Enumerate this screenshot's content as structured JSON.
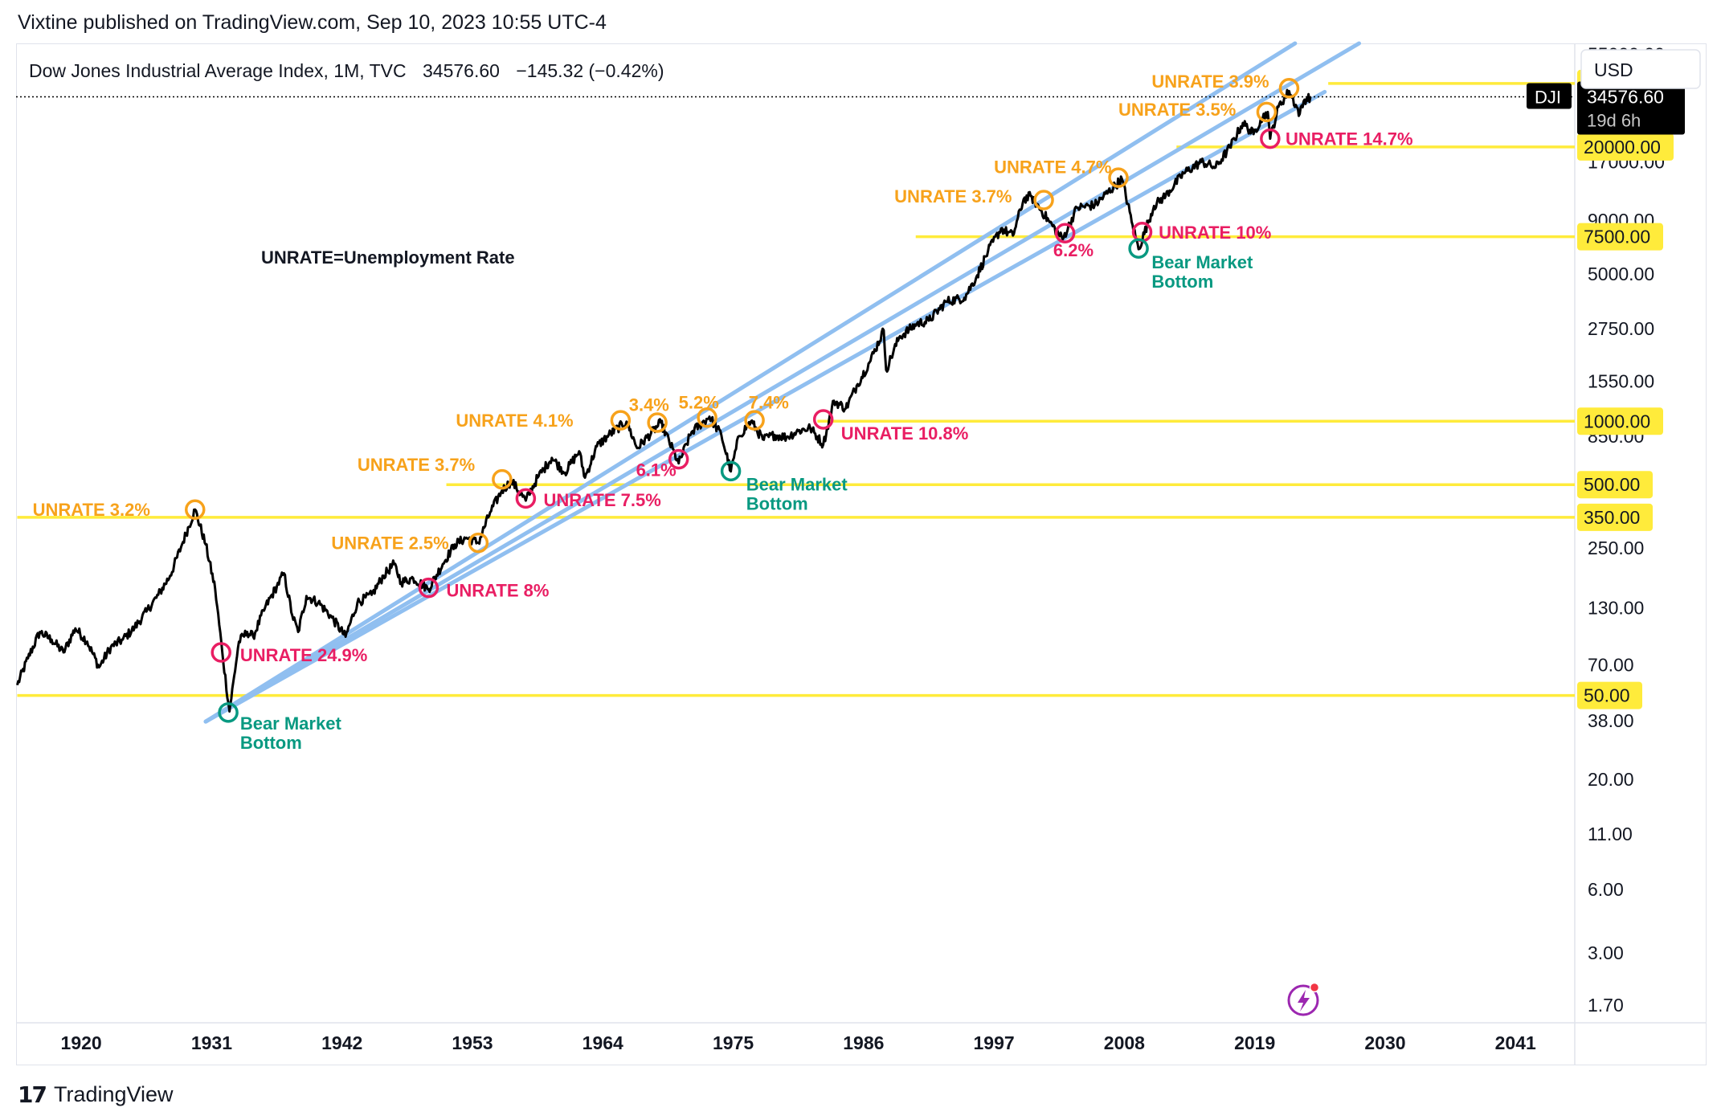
{
  "publisher_line": "Vixtine published on TradingView.com, Sep 10, 2023 10:55 UTC-4",
  "footer": {
    "logo_icon": "tradingview-logo-icon",
    "label": "TradingView"
  },
  "chart_data": {
    "type": "line",
    "title": "Dow Jones Industrial Average Index, 1M, TVC",
    "last_price": "34576.60",
    "change": "−145.32 (−0.42%)",
    "currency": "USD",
    "symbol": "DJI",
    "countdown": "19d 6h",
    "annotation_note": "UNRATE=Unemployment Rate",
    "log_scale": true,
    "ylim": [
      1.4,
      62000
    ],
    "xlim": [
      1914.5,
      2046
    ],
    "x_ticks": [
      "1920",
      "1931",
      "1942",
      "1953",
      "1964",
      "1975",
      "1986",
      "1997",
      "2008",
      "2019",
      "2030",
      "2041"
    ],
    "y_ticks": [
      "55000.00",
      "17000.00",
      "9000.00",
      "5000.00",
      "2750.00",
      "1550.00",
      "850.00",
      "250.00",
      "130.00",
      "70.00",
      "38.00",
      "20.00",
      "11.00",
      "6.00",
      "3.00",
      "1.70"
    ],
    "series_color": "#000000",
    "price_path": [
      [
        1914.6,
        56
      ],
      [
        1915.5,
        75
      ],
      [
        1916.5,
        100
      ],
      [
        1917.5,
        92
      ],
      [
        1918.5,
        80
      ],
      [
        1919.5,
        104
      ],
      [
        1920.5,
        90
      ],
      [
        1921.5,
        68
      ],
      [
        1922.5,
        85
      ],
      [
        1923.5,
        92
      ],
      [
        1924.5,
        105
      ],
      [
        1925.5,
        125
      ],
      [
        1926.5,
        150
      ],
      [
        1927.5,
        185
      ],
      [
        1928.5,
        260
      ],
      [
        1929.6,
        381
      ],
      [
        1930.5,
        260
      ],
      [
        1931.3,
        160
      ],
      [
        1931.9,
        80
      ],
      [
        1932.5,
        42
      ],
      [
        1933.3,
        90
      ],
      [
        1934.0,
        100
      ],
      [
        1934.5,
        95
      ],
      [
        1935.5,
        130
      ],
      [
        1936.5,
        165
      ],
      [
        1937.1,
        190
      ],
      [
        1937.8,
        120
      ],
      [
        1938.3,
        100
      ],
      [
        1939.0,
        148
      ],
      [
        1940.0,
        138
      ],
      [
        1941.0,
        120
      ],
      [
        1942.3,
        95
      ],
      [
        1943.3,
        138
      ],
      [
        1944.5,
        150
      ],
      [
        1945.5,
        185
      ],
      [
        1946.4,
        210
      ],
      [
        1947.0,
        172
      ],
      [
        1948.0,
        180
      ],
      [
        1949.3,
        160
      ],
      [
        1950.5,
        210
      ],
      [
        1951.5,
        260
      ],
      [
        1952.5,
        280
      ],
      [
        1953.5,
        265
      ],
      [
        1954.5,
        370
      ],
      [
        1955.5,
        470
      ],
      [
        1956.3,
        520
      ],
      [
        1957.5,
        420
      ],
      [
        1958.5,
        540
      ],
      [
        1959.7,
        670
      ],
      [
        1960.8,
        570
      ],
      [
        1962.0,
        720
      ],
      [
        1962.5,
        540
      ],
      [
        1963.5,
        760
      ],
      [
        1964.5,
        860
      ],
      [
        1966.0,
        995
      ],
      [
        1966.9,
        745
      ],
      [
        1968.9,
        985
      ],
      [
        1970.4,
        631
      ],
      [
        1971.5,
        890
      ],
      [
        1973.0,
        1051
      ],
      [
        1974.0,
        860
      ],
      [
        1974.8,
        578
      ],
      [
        1975.5,
        850
      ],
      [
        1976.5,
        1000
      ],
      [
        1977.5,
        820
      ],
      [
        1978.5,
        860
      ],
      [
        1979.5,
        840
      ],
      [
        1980.5,
        900
      ],
      [
        1981.5,
        930
      ],
      [
        1982.6,
        776
      ],
      [
        1983.5,
        1250
      ],
      [
        1984.5,
        1150
      ],
      [
        1985.5,
        1500
      ],
      [
        1986.5,
        1900
      ],
      [
        1987.7,
        2700
      ],
      [
        1987.9,
        1750
      ],
      [
        1989.0,
        2500
      ],
      [
        1990.5,
        2900
      ],
      [
        1991.5,
        3000
      ],
      [
        1993.0,
        3700
      ],
      [
        1994.5,
        3850
      ],
      [
        1995.5,
        4800
      ],
      [
        1996.5,
        6400
      ],
      [
        1997.6,
        8200
      ],
      [
        1998.6,
        7600
      ],
      [
        1999.5,
        11300
      ],
      [
        2000.1,
        11700
      ],
      [
        2001.7,
        8800
      ],
      [
        2002.8,
        7300
      ],
      [
        2004.0,
        10300
      ],
      [
        2005.5,
        10600
      ],
      [
        2007.8,
        14100
      ],
      [
        2008.7,
        8500
      ],
      [
        2009.2,
        6550
      ],
      [
        2010.5,
        10500
      ],
      [
        2011.5,
        11800
      ],
      [
        2013.0,
        15000
      ],
      [
        2014.5,
        17000
      ],
      [
        2015.7,
        16000
      ],
      [
        2016.9,
        19900
      ],
      [
        2018.0,
        26000
      ],
      [
        2018.9,
        23000
      ],
      [
        2019.5,
        27000
      ],
      [
        2020.1,
        29300
      ],
      [
        2020.3,
        21900
      ],
      [
        2021.0,
        31000
      ],
      [
        2021.9,
        36800
      ],
      [
        2022.8,
        28700
      ],
      [
        2023.2,
        33500
      ],
      [
        2023.7,
        34576
      ]
    ],
    "support_lines": [
      {
        "label": "40000.00",
        "value": 40000,
        "x_start": 2025.2
      },
      {
        "label": "20000.00",
        "value": 20000,
        "x_start": 2012.4
      },
      {
        "label": "7500.00",
        "value": 7500,
        "x_start": 1990.4
      },
      {
        "label": "1000.00",
        "value": 1000,
        "x_start": 1982.1
      },
      {
        "label": "500.00",
        "value": 500,
        "x_start": 1950.8
      },
      {
        "label": "350.00",
        "value": 350,
        "x_start": 1914.6
      },
      {
        "label": "50.00",
        "value": 50,
        "x_start": 1914.6
      }
    ],
    "support_color": "#ffeb3b",
    "trendline_color": "#90bff0",
    "trendlines": [
      {
        "from": [
          1930.5,
          37.6
        ],
        "to": [
          2022.4,
          62000
        ]
      },
      {
        "from": [
          1930.5,
          37.6
        ],
        "to": [
          2027.8,
          62000
        ]
      },
      {
        "from": [
          1930.5,
          37.6
        ],
        "to": [
          2024.9,
          36500
        ]
      }
    ],
    "peak_markers": [
      {
        "x": 1929.6,
        "y": 381,
        "label": "UNRATE 3.2%",
        "label_x": 1915.9,
        "label_y": 381
      },
      {
        "x": 1953.5,
        "y": 265,
        "label": "UNRATE 2.5%",
        "label_x": 1941.1,
        "label_y": 265
      },
      {
        "x": 1955.5,
        "y": 530,
        "label": "UNRATE 3.7%",
        "label_x": 1943.3,
        "label_y": 625
      },
      {
        "x": 1965.5,
        "y": 1010,
        "label": "UNRATE 4.1%",
        "label_x": 1951.6,
        "label_y": 1010
      },
      {
        "x": 1968.6,
        "y": 985,
        "label": "3.4%",
        "label_x": 1966.2,
        "label_y": 1200
      },
      {
        "x": 1972.8,
        "y": 1040,
        "label": "5.2%",
        "label_x": 1970.4,
        "label_y": 1230
      },
      {
        "x": 1976.8,
        "y": 1010,
        "label": "7.4%",
        "label_x": 1976.3,
        "label_y": 1230
      },
      {
        "x": 2001.2,
        "y": 11200,
        "label": "UNRATE 3.7%",
        "label_x": 1988.6,
        "label_y": 11700
      },
      {
        "x": 2007.5,
        "y": 14300,
        "label": "UNRATE 4.7%",
        "label_x": 1997.0,
        "label_y": 16100
      },
      {
        "x": 2020.0,
        "y": 29300,
        "label": "UNRATE 3.5%",
        "label_x": 2007.5,
        "label_y": 30200
      },
      {
        "x": 2021.9,
        "y": 38000,
        "label": "UNRATE 3.9%",
        "label_x": 2010.3,
        "label_y": 41000
      }
    ],
    "trough_markers": [
      {
        "x": 1931.8,
        "y": 80,
        "label": "UNRATE 24.9%",
        "label_x": 1933.4,
        "label_y": 78
      },
      {
        "x": 1949.3,
        "y": 162,
        "label": "UNRATE 8%",
        "label_x": 1950.8,
        "label_y": 158
      },
      {
        "x": 1957.5,
        "y": 430,
        "label": "UNRATE 7.5%",
        "label_x": 1959.0,
        "label_y": 425
      },
      {
        "x": 1970.4,
        "y": 660,
        "label": "6.1%",
        "label_x": 1966.8,
        "label_y": 590
      },
      {
        "x": 1982.6,
        "y": 1020,
        "label": "UNRATE 10.8%",
        "label_x": 1984.1,
        "label_y": 880
      },
      {
        "x": 2003.0,
        "y": 7800,
        "label": "6.2%",
        "label_x": 2002.0,
        "label_y": 6500
      },
      {
        "x": 2009.5,
        "y": 7900,
        "label": "UNRATE 10%",
        "label_x": 2010.9,
        "label_y": 7900
      },
      {
        "x": 2020.3,
        "y": 21900,
        "label": "UNRATE 14.7%",
        "label_x": 2021.6,
        "label_y": 21900
      }
    ],
    "bottom_markers": [
      {
        "x": 1932.4,
        "y": 41.5,
        "label_1": "Bear Market",
        "label_2": "Bottom",
        "label_x": 1933.4,
        "label_y": 34.5
      },
      {
        "x": 1974.8,
        "y": 580,
        "label_1": "Bear Market",
        "label_2": "Bottom",
        "label_x": 1976.1,
        "label_y": 470
      },
      {
        "x": 2009.2,
        "y": 6600,
        "label_1": "Bear Market",
        "label_2": "Bottom",
        "label_x": 2010.3,
        "label_y": 5300
      }
    ],
    "peak_color": "#f7a21b",
    "trough_color": "#e91e63",
    "bottom_color": "#089981",
    "price_line_color": "#000000",
    "grid": false,
    "indicator_icon": "lightning-icon"
  }
}
